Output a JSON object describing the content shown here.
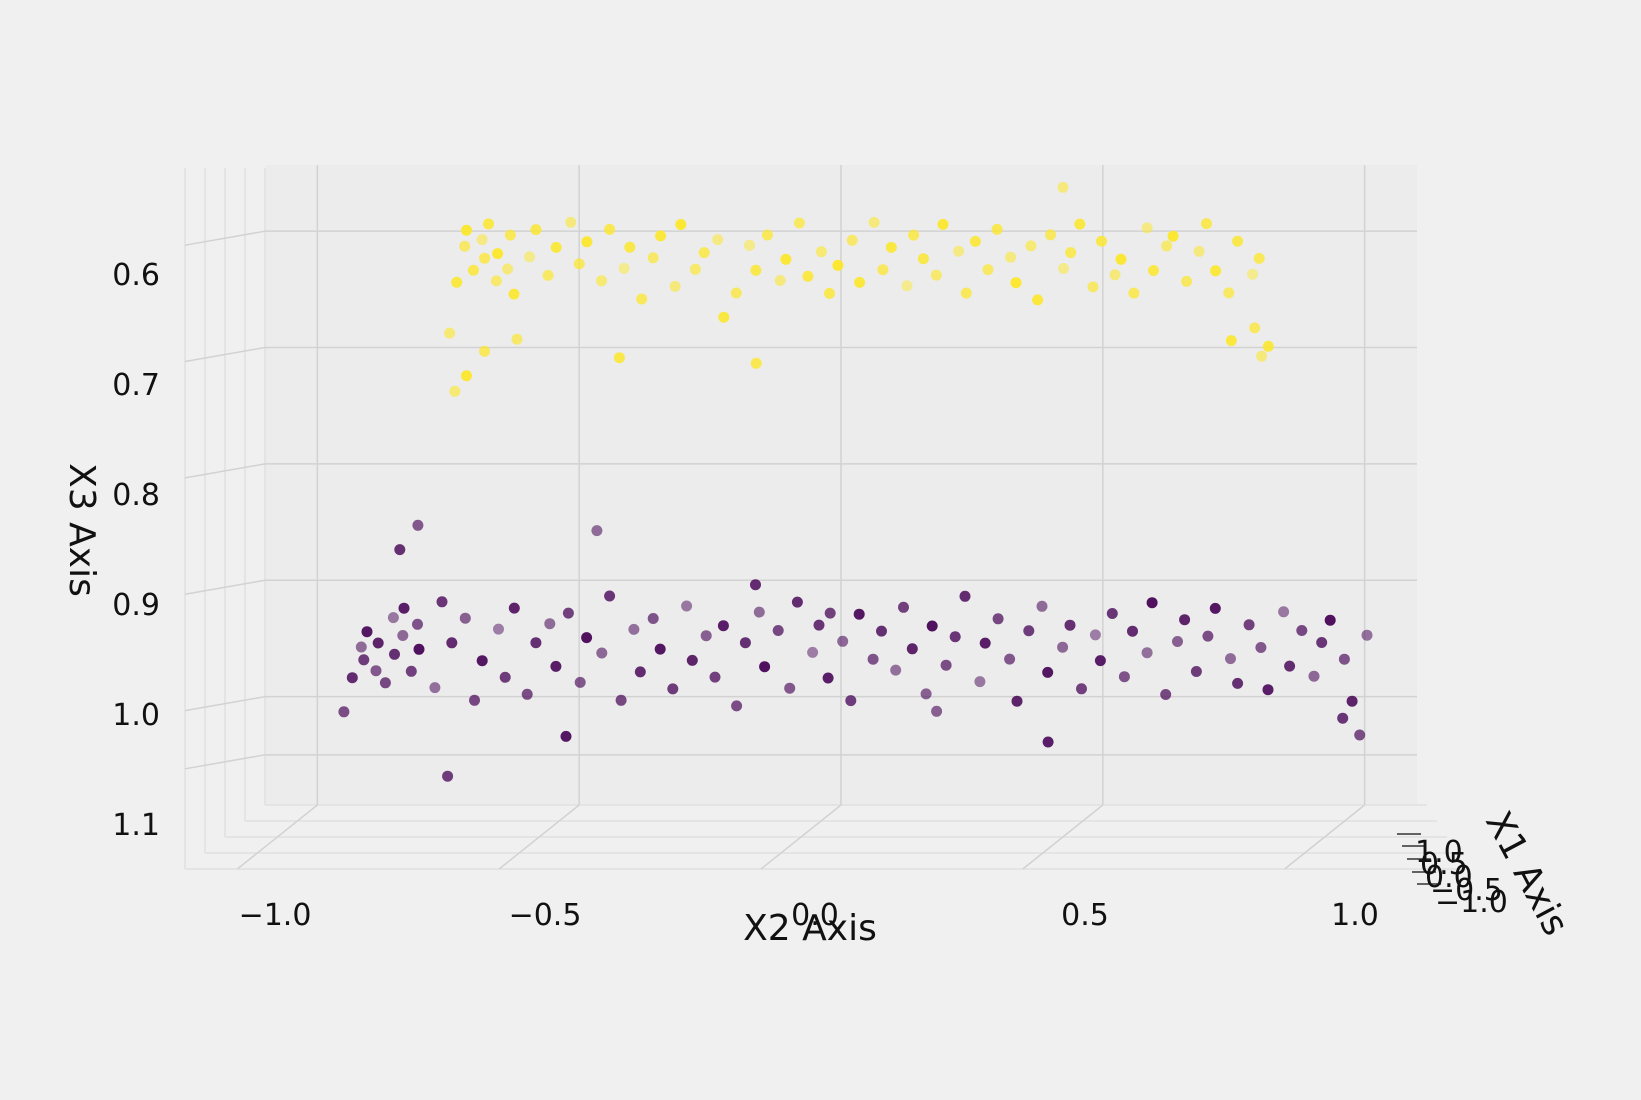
{
  "chart_data": {
    "type": "scatter",
    "projection": "3d",
    "view": "front (looking along X1)",
    "title": "",
    "xlabel": "X2 Axis",
    "ylabel": "X3 Axis",
    "zlabel": "X1 Axis",
    "x_ticks": [
      "−1.0",
      "−0.5",
      "0.0",
      "0.5",
      "1.0"
    ],
    "y_ticks": [
      "0.6",
      "0.7",
      "0.8",
      "0.9",
      "1.0",
      "1.1"
    ],
    "z_ticks": [
      "−1.0",
      "−0.5",
      "0.0",
      "0.5",
      "1.0"
    ],
    "xlim": [
      -1.1,
      1.1
    ],
    "ylim": [
      0.55,
      1.1
    ],
    "y_inverted": true,
    "grid": true,
    "legend": "none",
    "colors": {
      "upper_cluster": "#fde725",
      "lower_cluster": "#440154"
    },
    "series": [
      {
        "color": "#fde725",
        "x2": [
          -0.75,
          -0.73,
          -0.72,
          -0.71,
          -0.7,
          -0.69,
          -0.68,
          -0.67,
          -0.66,
          -0.65,
          -0.64,
          -0.63,
          -0.62,
          -0.6,
          -0.58,
          -0.56,
          -0.54,
          -0.52,
          -0.5,
          -0.48,
          -0.46,
          -0.44,
          -0.42,
          -0.4,
          -0.38,
          -0.36,
          -0.34,
          -0.32,
          -0.3,
          -0.28,
          -0.26,
          -0.24,
          -0.22,
          -0.2,
          -0.18,
          -0.16,
          -0.14,
          -0.12,
          -0.1,
          -0.08,
          -0.06,
          -0.04,
          -0.02,
          0.0,
          0.02,
          0.04,
          0.06,
          0.08,
          0.1,
          0.12,
          0.14,
          0.16,
          0.18,
          0.2,
          0.22,
          0.24,
          0.26,
          0.28,
          0.3,
          0.32,
          0.34,
          0.36,
          0.38,
          0.4,
          0.42,
          0.44,
          0.46,
          0.48,
          0.5,
          0.52,
          0.54,
          0.56,
          0.58,
          0.6,
          0.62,
          0.64,
          0.66,
          0.68,
          0.7,
          0.72,
          0.74,
          0.76,
          0.78,
          0.8,
          0.82,
          -0.74,
          -0.71,
          -0.68,
          -0.62,
          -0.42,
          -0.16,
          0.42,
          0.75,
          0.79,
          0.8
        ],
        "x3": [
          0.695,
          0.65,
          0.62,
          0.605,
          0.64,
          0.615,
          0.63,
          0.6,
          0.65,
          0.625,
          0.64,
          0.61,
          0.66,
          0.63,
          0.605,
          0.645,
          0.62,
          0.6,
          0.635,
          0.615,
          0.65,
          0.605,
          0.64,
          0.62,
          0.665,
          0.63,
          0.61,
          0.655,
          0.6,
          0.64,
          0.625,
          0.615,
          0.68,
          0.66,
          0.62,
          0.64,
          0.61,
          0.65,
          0.63,
          0.6,
          0.645,
          0.625,
          0.66,
          0.635,
          0.615,
          0.65,
          0.6,
          0.64,
          0.62,
          0.655,
          0.61,
          0.63,
          0.645,
          0.6,
          0.625,
          0.66,
          0.615,
          0.64,
          0.605,
          0.63,
          0.65,
          0.62,
          0.665,
          0.61,
          0.64,
          0.625,
          0.6,
          0.655,
          0.615,
          0.645,
          0.63,
          0.66,
          0.605,
          0.64,
          0.62,
          0.61,
          0.65,
          0.625,
          0.6,
          0.64,
          0.66,
          0.615,
          0.645,
          0.63,
          0.705,
          0.745,
          0.73,
          0.71,
          0.7,
          0.715,
          0.72,
          0.57,
          0.7,
          0.69,
          0.715
        ],
        "x1": [
          -0.4,
          0.6,
          -0.2,
          0.8,
          0.3,
          -0.7,
          0.1,
          0.5,
          -0.3,
          0.9,
          -0.5,
          0.2,
          0.7,
          -0.8,
          0.4,
          -0.1,
          0.6,
          -0.6,
          0.0,
          0.8,
          -0.4,
          0.3,
          -0.9,
          0.5,
          0.1,
          -0.2,
          0.7,
          -0.5,
          0.9,
          -0.3,
          0.2,
          -0.7,
          0.6,
          0.0,
          -0.8,
          0.4,
          0.1,
          -0.6,
          0.8,
          -0.1,
          0.5,
          -0.4,
          0.3,
          0.9,
          -0.2,
          0.7,
          -0.5,
          0.0,
          0.6,
          -0.9,
          0.2,
          0.4,
          -0.3,
          0.8,
          -0.7,
          0.1,
          0.5,
          -0.1,
          0.3,
          -0.6,
          0.9,
          -0.4,
          0.7,
          0.0,
          -0.8,
          0.2,
          0.6,
          -0.2,
          0.4,
          -0.5,
          0.8,
          0.1,
          -0.7,
          0.5,
          -0.3,
          0.9,
          0.0,
          -0.6,
          0.3,
          0.7,
          -0.1,
          0.4,
          -0.9,
          0.2,
          0.6,
          -0.4,
          0.8,
          0.1,
          -0.2,
          0.5,
          0.3,
          -0.6,
          0.7,
          0.0,
          -0.5
        ]
      },
      {
        "color": "#440154",
        "x2": [
          -0.95,
          -0.93,
          -0.92,
          -0.91,
          -0.9,
          -0.89,
          -0.88,
          -0.87,
          -0.86,
          -0.85,
          -0.84,
          -0.83,
          -0.82,
          -0.81,
          -0.8,
          -0.78,
          -0.76,
          -0.74,
          -0.72,
          -0.7,
          -0.68,
          -0.66,
          -0.64,
          -0.62,
          -0.6,
          -0.58,
          -0.56,
          -0.54,
          -0.52,
          -0.5,
          -0.48,
          -0.46,
          -0.44,
          -0.42,
          -0.4,
          -0.38,
          -0.36,
          -0.34,
          -0.32,
          -0.3,
          -0.28,
          -0.26,
          -0.24,
          -0.22,
          -0.2,
          -0.18,
          -0.16,
          -0.14,
          -0.12,
          -0.1,
          -0.08,
          -0.06,
          -0.04,
          -0.02,
          0.0,
          0.02,
          0.04,
          0.06,
          0.08,
          0.1,
          0.12,
          0.14,
          0.16,
          0.18,
          0.2,
          0.22,
          0.24,
          0.26,
          0.28,
          0.3,
          0.32,
          0.34,
          0.36,
          0.38,
          0.4,
          0.42,
          0.44,
          0.46,
          0.48,
          0.5,
          0.52,
          0.54,
          0.56,
          0.58,
          0.6,
          0.62,
          0.64,
          0.66,
          0.68,
          0.7,
          0.72,
          0.74,
          0.76,
          0.78,
          0.8,
          0.82,
          0.84,
          0.86,
          0.88,
          0.9,
          0.92,
          0.94,
          0.96,
          0.98,
          1.0,
          -0.84,
          -0.81,
          -0.52,
          -0.75,
          -0.47,
          -0.16,
          -0.02,
          0.18,
          0.4,
          0.96,
          0.99
        ],
        "x3": [
          1.02,
          0.99,
          0.965,
          0.975,
          0.95,
          0.985,
          0.96,
          0.995,
          0.94,
          0.97,
          0.955,
          0.93,
          0.985,
          0.945,
          0.965,
          1.0,
          0.925,
          0.96,
          0.94,
          1.01,
          0.975,
          0.95,
          0.99,
          0.93,
          1.005,
          0.96,
          0.945,
          0.98,
          0.935,
          0.995,
          0.955,
          0.97,
          0.92,
          1.01,
          0.95,
          0.985,
          0.94,
          0.965,
          1.0,
          0.93,
          0.975,
          0.955,
          0.99,
          0.945,
          1.015,
          0.96,
          0.935,
          0.98,
          0.95,
          1.0,
          0.925,
          0.97,
          0.945,
          0.99,
          0.96,
          1.01,
          0.935,
          0.975,
          0.95,
          0.985,
          0.93,
          0.965,
          1.005,
          0.945,
          0.98,
          0.955,
          0.92,
          0.995,
          0.96,
          0.94,
          0.975,
          1.01,
          0.95,
          0.93,
          0.985,
          0.965,
          0.945,
          1.0,
          0.955,
          0.975,
          0.935,
          0.99,
          0.95,
          0.97,
          0.925,
          1.005,
          0.96,
          0.94,
          0.985,
          0.955,
          0.93,
          0.975,
          0.995,
          0.945,
          0.965,
          1.0,
          0.935,
          0.98,
          0.95,
          0.99,
          0.96,
          0.94,
          0.975,
          1.01,
          0.955,
          0.88,
          0.86,
          1.04,
          1.075,
          0.865,
          0.91,
          0.935,
          1.02,
          1.045,
          1.025,
          1.04
        ],
        "x1": [
          -0.1,
          0.5,
          -0.6,
          0.2,
          0.8,
          -0.3,
          0.6,
          0.0,
          -0.8,
          0.4,
          -0.5,
          0.7,
          0.1,
          -0.2,
          0.9,
          -0.7,
          0.3,
          0.5,
          -0.4,
          0.0,
          0.8,
          -0.9,
          0.2,
          0.6,
          -0.1,
          0.4,
          -0.6,
          0.7,
          0.1,
          -0.3,
          0.9,
          -0.5,
          0.3,
          0.0,
          -0.7,
          0.5,
          -0.2,
          0.8,
          0.2,
          -0.8,
          0.6,
          -0.4,
          0.1,
          0.7,
          -0.1,
          0.4,
          -0.6,
          0.9,
          0.0,
          -0.3,
          0.5,
          -0.9,
          0.3,
          0.7,
          -0.5,
          0.2,
          0.8,
          -0.2,
          0.4,
          -0.7,
          0.1,
          0.6,
          -0.4,
          0.9,
          -0.1,
          0.3,
          0.5,
          -0.8,
          0.7,
          0.0,
          -0.3,
          0.6,
          0.2,
          -0.6,
          0.8,
          -0.5,
          0.4,
          0.1,
          -0.9,
          0.7,
          0.3,
          -0.2,
          0.5,
          -0.7,
          0.9,
          0.0,
          -0.4,
          0.6,
          0.2,
          -0.1,
          0.8,
          -0.6,
          0.4,
          0.1,
          -0.3,
          0.7,
          -0.8,
          0.5,
          0.0,
          -0.5,
          0.3,
          0.9,
          -0.2,
          0.6,
          -0.7,
          0.4,
          -0.3,
          0.8,
          0.2,
          -0.6,
          0.5,
          0.1,
          -0.4,
          0.7,
          0.3,
          -0.1
        ]
      }
    ]
  }
}
